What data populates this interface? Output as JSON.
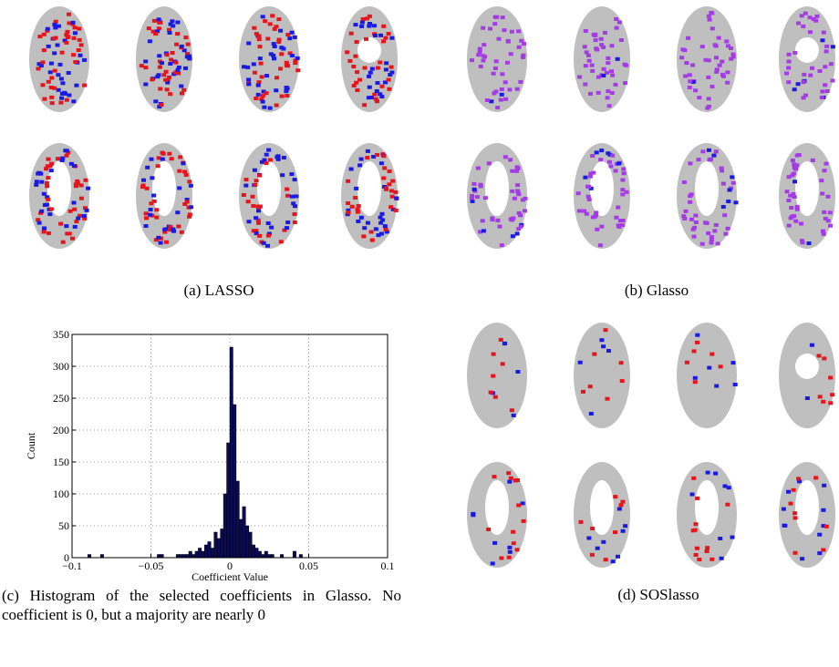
{
  "panels": [
    {
      "caption": "(a) LASSO"
    },
    {
      "caption": "(b) Glasso"
    },
    {
      "caption": "(d) SOSlasso"
    }
  ],
  "histogram_caption": "(c) Histogram of the selected coefficients in Glasso. No coefficient is 0, but a majority are nearly 0",
  "chart_data": {
    "type": "histogram",
    "xlabel": "Coefficient Value",
    "ylabel": "Count",
    "bins": [
      -0.09,
      -0.088,
      -0.086,
      -0.084,
      -0.082,
      -0.08,
      -0.078,
      -0.076,
      -0.074,
      -0.072,
      -0.07,
      -0.068,
      -0.066,
      -0.064,
      -0.062,
      -0.06,
      -0.058,
      -0.056,
      -0.054,
      -0.052,
      -0.05,
      -0.048,
      -0.046,
      -0.044,
      -0.042,
      -0.04,
      -0.038,
      -0.036,
      -0.034,
      -0.032,
      -0.03,
      -0.028,
      -0.026,
      -0.024,
      -0.022,
      -0.02,
      -0.018,
      -0.016,
      -0.014,
      -0.012,
      -0.01,
      -0.008,
      -0.006,
      -0.004,
      -0.002,
      0,
      0.002,
      0.004,
      0.006,
      0.008,
      0.01,
      0.012,
      0.014,
      0.016,
      0.018,
      0.02,
      0.022,
      0.024,
      0.026,
      0.028,
      0.03,
      0.032,
      0.034,
      0.036,
      0.038,
      0.04,
      0.042,
      0.044,
      0.046
    ],
    "counts": [
      5,
      0,
      0,
      0,
      5,
      0,
      0,
      0,
      0,
      0,
      0,
      0,
      0,
      0,
      0,
      0,
      0,
      0,
      0,
      0,
      0,
      0,
      5,
      5,
      0,
      0,
      0,
      0,
      5,
      5,
      5,
      5,
      10,
      5,
      10,
      15,
      10,
      20,
      25,
      15,
      40,
      30,
      45,
      100,
      180,
      330,
      240,
      120,
      60,
      80,
      50,
      40,
      20,
      15,
      10,
      5,
      10,
      5,
      5,
      0,
      0,
      5,
      0,
      0,
      0,
      10,
      0,
      5
    ],
    "color": "#0b0b55",
    "xlim": [
      -0.1,
      0.1
    ],
    "xticks": [
      {
        "value": -0.1,
        "label": "−0.1"
      },
      {
        "value": -0.05,
        "label": "−0.05"
      },
      0,
      0.05,
      0.1
    ],
    "ylim": [
      0,
      350
    ],
    "yticks": [
      0,
      50,
      100,
      150,
      200,
      250,
      300,
      350
    ],
    "grid": true
  }
}
